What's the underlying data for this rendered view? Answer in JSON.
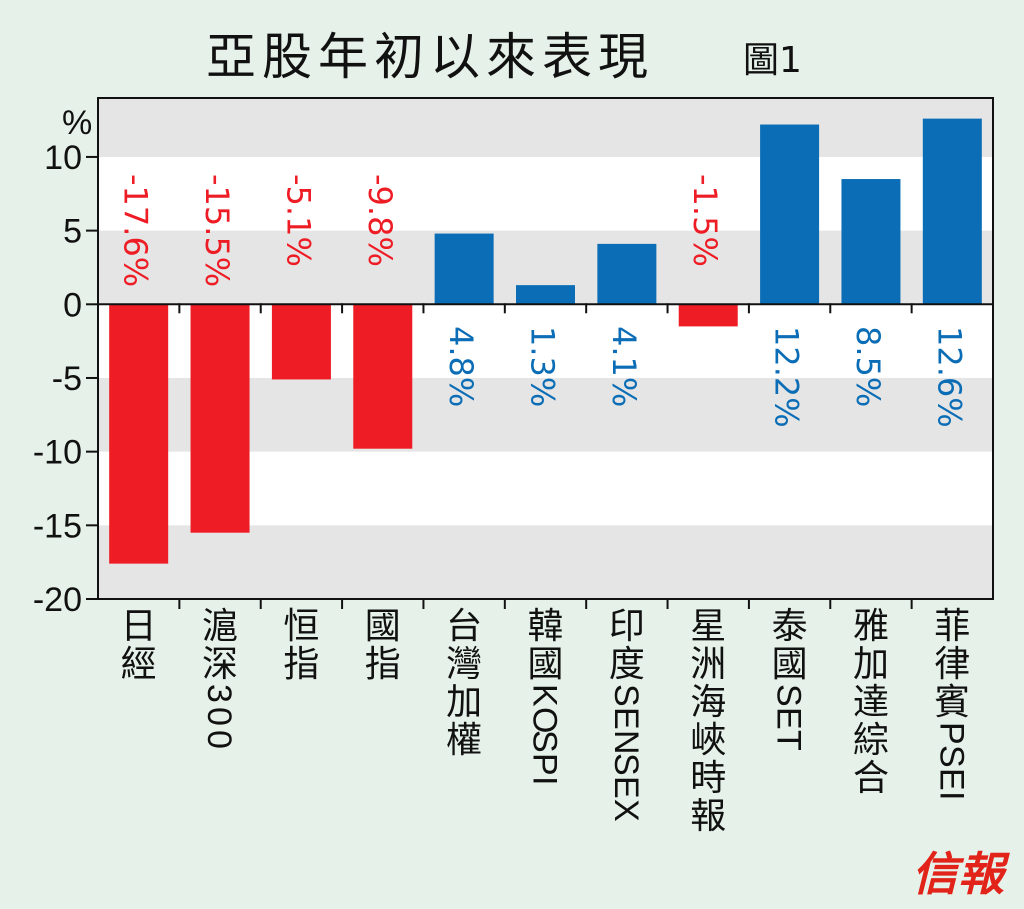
{
  "chart_data": {
    "type": "bar",
    "title": "亞股年初以來表現",
    "subtitle": "圖1",
    "ylabel": "%",
    "ylim": [
      -20,
      14
    ],
    "yticks": [
      10,
      5,
      0,
      -5,
      -10,
      -15,
      -20
    ],
    "ytick_labels": [
      "10",
      "5",
      "0",
      "-5",
      "-10",
      "-15",
      "-20"
    ],
    "grid": "alternating horizontal bands",
    "categories": [
      "日經",
      "滬深300",
      "恒指",
      "國指",
      "台灣加權",
      "韓國KOSPI",
      "印度SENSEX",
      "星洲海峽時報",
      "泰國SET",
      "雅加達綜合",
      "菲律賓PSEI"
    ],
    "values": [
      -17.6,
      -15.5,
      -5.1,
      -9.8,
      4.8,
      1.3,
      4.1,
      -1.5,
      12.2,
      8.5,
      12.6
    ],
    "value_labels": [
      "-17.6%",
      "-15.5%",
      "-5.1%",
      "-9.8%",
      "4.8%",
      "1.3%",
      "4.1%",
      "-1.5%",
      "12.2%",
      "8.5%",
      "12.6%"
    ]
  },
  "colors": {
    "negative": "#ee1c25",
    "positive": "#0b6db5",
    "band": "#e5e5e5",
    "plot_bg": "#ffffff",
    "page_bg": "#e6f2e9",
    "logo": "#e2231a"
  },
  "logo_text": "信報"
}
